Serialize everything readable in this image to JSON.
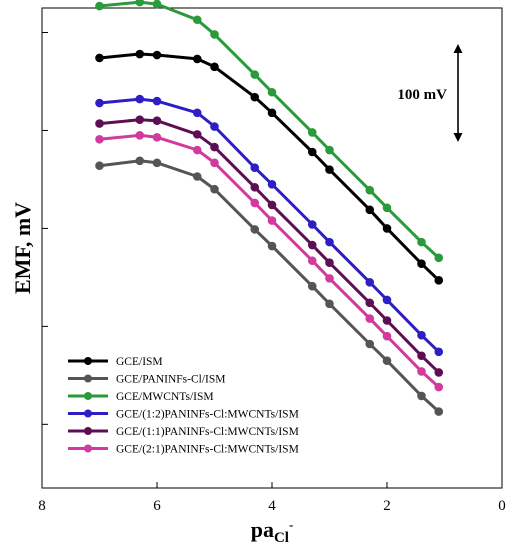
{
  "chart_data": {
    "type": "line",
    "xlabel": "pa",
    "xlabel_sub": "Cl",
    "xlabel_sup": "-",
    "ylabel": "EMF, mV",
    "xlim": [
      8,
      0
    ],
    "x_ticks": [
      8,
      6,
      4,
      2,
      0
    ],
    "y_unit": "mV",
    "ylim": [
      -1035,
      -545
    ],
    "y_minor_ticks": [
      -570,
      -670,
      -770,
      -870,
      -970
    ],
    "scale_bar": {
      "label": "100 mV",
      "length": 100
    },
    "legend_position": "bottom-left",
    "series": [
      {
        "name": "GCE/ISM",
        "color": "#000000",
        "x": [
          7.0,
          6.3,
          6.0,
          5.3,
          5.0,
          4.3,
          4.0,
          3.3,
          3.0,
          2.3,
          2.0,
          1.4,
          1.1
        ],
        "y": [
          -596,
          -592,
          -593,
          -597,
          -605,
          -636,
          -652,
          -692,
          -710,
          -751,
          -770,
          -806,
          -823
        ]
      },
      {
        "name": "GCE/PANINFs-Cl/ISM",
        "color": "#555555",
        "x": [
          7.0,
          6.3,
          6.0,
          5.3,
          5.0,
          4.3,
          4.0,
          3.3,
          3.0,
          2.3,
          2.0,
          1.4,
          1.1
        ],
        "y": [
          -706,
          -701,
          -703,
          -717,
          -730,
          -771,
          -788,
          -829,
          -847,
          -888,
          -905,
          -941,
          -957
        ]
      },
      {
        "name": "GCE/MWCNTs/ISM",
        "color": "#2a9a3a",
        "x": [
          7.0,
          6.3,
          6.0,
          5.3,
          5.0,
          4.3,
          4.0,
          3.3,
          3.0,
          2.3,
          2.0,
          1.4,
          1.1
        ],
        "y": [
          -543,
          -539,
          -541,
          -557,
          -572,
          -613,
          -631,
          -672,
          -690,
          -731,
          -749,
          -784,
          -800
        ]
      },
      {
        "name": "GCE/(1:2)PANINFs-Cl:MWCNTs/ISM",
        "color": "#2e1fc4",
        "x": [
          7.0,
          6.3,
          6.0,
          5.3,
          5.0,
          4.3,
          4.0,
          3.3,
          3.0,
          2.3,
          2.0,
          1.4,
          1.1
        ],
        "y": [
          -642,
          -638,
          -640,
          -652,
          -666,
          -708,
          -725,
          -766,
          -784,
          -825,
          -843,
          -879,
          -896
        ]
      },
      {
        "name": "GCE/(1:1)PANINFs-Cl:MWCNTs/ISM",
        "color": "#5e0e52",
        "x": [
          7.0,
          6.3,
          6.0,
          5.3,
          5.0,
          4.3,
          4.0,
          3.3,
          3.0,
          2.3,
          2.0,
          1.4,
          1.1
        ],
        "y": [
          -663,
          -659,
          -660,
          -674,
          -687,
          -728,
          -746,
          -787,
          -805,
          -846,
          -864,
          -900,
          -917
        ]
      },
      {
        "name": "GCE/(2:1)PANINFs-Cl:MWCNTs/ISM",
        "color": "#d23a9e",
        "x": [
          7.0,
          6.3,
          6.0,
          5.3,
          5.0,
          4.3,
          4.0,
          3.3,
          3.0,
          2.3,
          2.0,
          1.4,
          1.1
        ],
        "y": [
          -679,
          -675,
          -677,
          -690,
          -703,
          -744,
          -762,
          -803,
          -821,
          -862,
          -880,
          -916,
          -932
        ]
      }
    ]
  }
}
